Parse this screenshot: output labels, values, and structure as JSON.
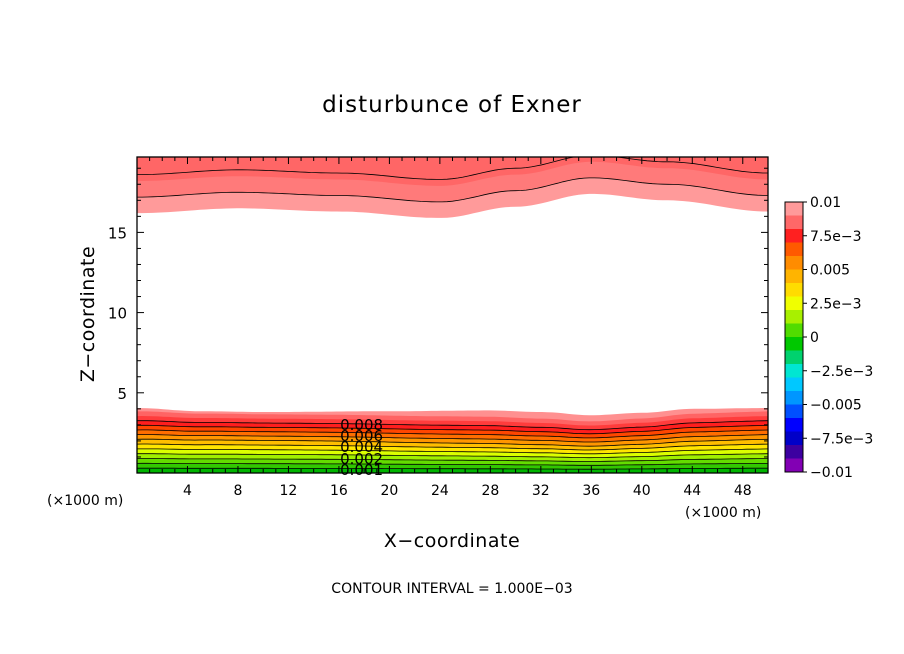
{
  "chart_data": {
    "type": "heatmap",
    "title": "disturbunce of Exner",
    "xlabel": "X−coordinate",
    "ylabel": "Z−coordinate",
    "x_unit_label": "(×1000 m)",
    "y_unit_label": "(×1000 m)",
    "xlim": [
      0,
      50
    ],
    "ylim": [
      0,
      19.7
    ],
    "x_ticks": [
      4,
      8,
      12,
      16,
      20,
      24,
      28,
      32,
      36,
      40,
      44,
      48
    ],
    "y_ticks": [
      5,
      10,
      15
    ],
    "footer": "CONTOUR INTERVAL = 1.000E−03",
    "contour_interval": 0.001,
    "colorbar": {
      "min": -0.01,
      "max": 0.01,
      "labels": [
        "0.01",
        "7.5e−3",
        "0.005",
        "2.5e−3",
        "0",
        "−2.5e−3",
        "−0.005",
        "−7.5e−3",
        "−0.01"
      ],
      "colors_top_to_bottom": [
        "#ff9a9a",
        "#ff6868",
        "#ff2020",
        "#ff5a00",
        "#ff8c00",
        "#ffb400",
        "#ffdc00",
        "#f0ff00",
        "#a8f000",
        "#50dc00",
        "#00c800",
        "#00d26e",
        "#00e6d2",
        "#00c8ff",
        "#0096ff",
        "#0050ff",
        "#0000ff",
        "#0000c8",
        "#3c00a0",
        "#8200b4"
      ]
    },
    "contour_labels": [
      "0.008",
      "0.006",
      "0.004",
      "0.002",
      "0.001"
    ],
    "bottom_layer": {
      "description": "value increases with height from ~0.0005 at z=0 to 0.01 at top of band",
      "band_top_z": [
        [
          0,
          4.05
        ],
        [
          5,
          3.85
        ],
        [
          10,
          3.8
        ],
        [
          20,
          3.85
        ],
        [
          28,
          3.9
        ],
        [
          32,
          3.8
        ],
        [
          36,
          3.6
        ],
        [
          40,
          3.75
        ],
        [
          44,
          4.0
        ],
        [
          50,
          4.05
        ]
      ]
    },
    "top_layer": {
      "description": "value 0.01 bands above lower edge",
      "band_bottom_z": [
        [
          0,
          16.2
        ],
        [
          8,
          16.5
        ],
        [
          16,
          16.3
        ],
        [
          24,
          15.9
        ],
        [
          30,
          16.6
        ],
        [
          36,
          17.4
        ],
        [
          42,
          17.0
        ],
        [
          50,
          16.3
        ]
      ]
    }
  }
}
